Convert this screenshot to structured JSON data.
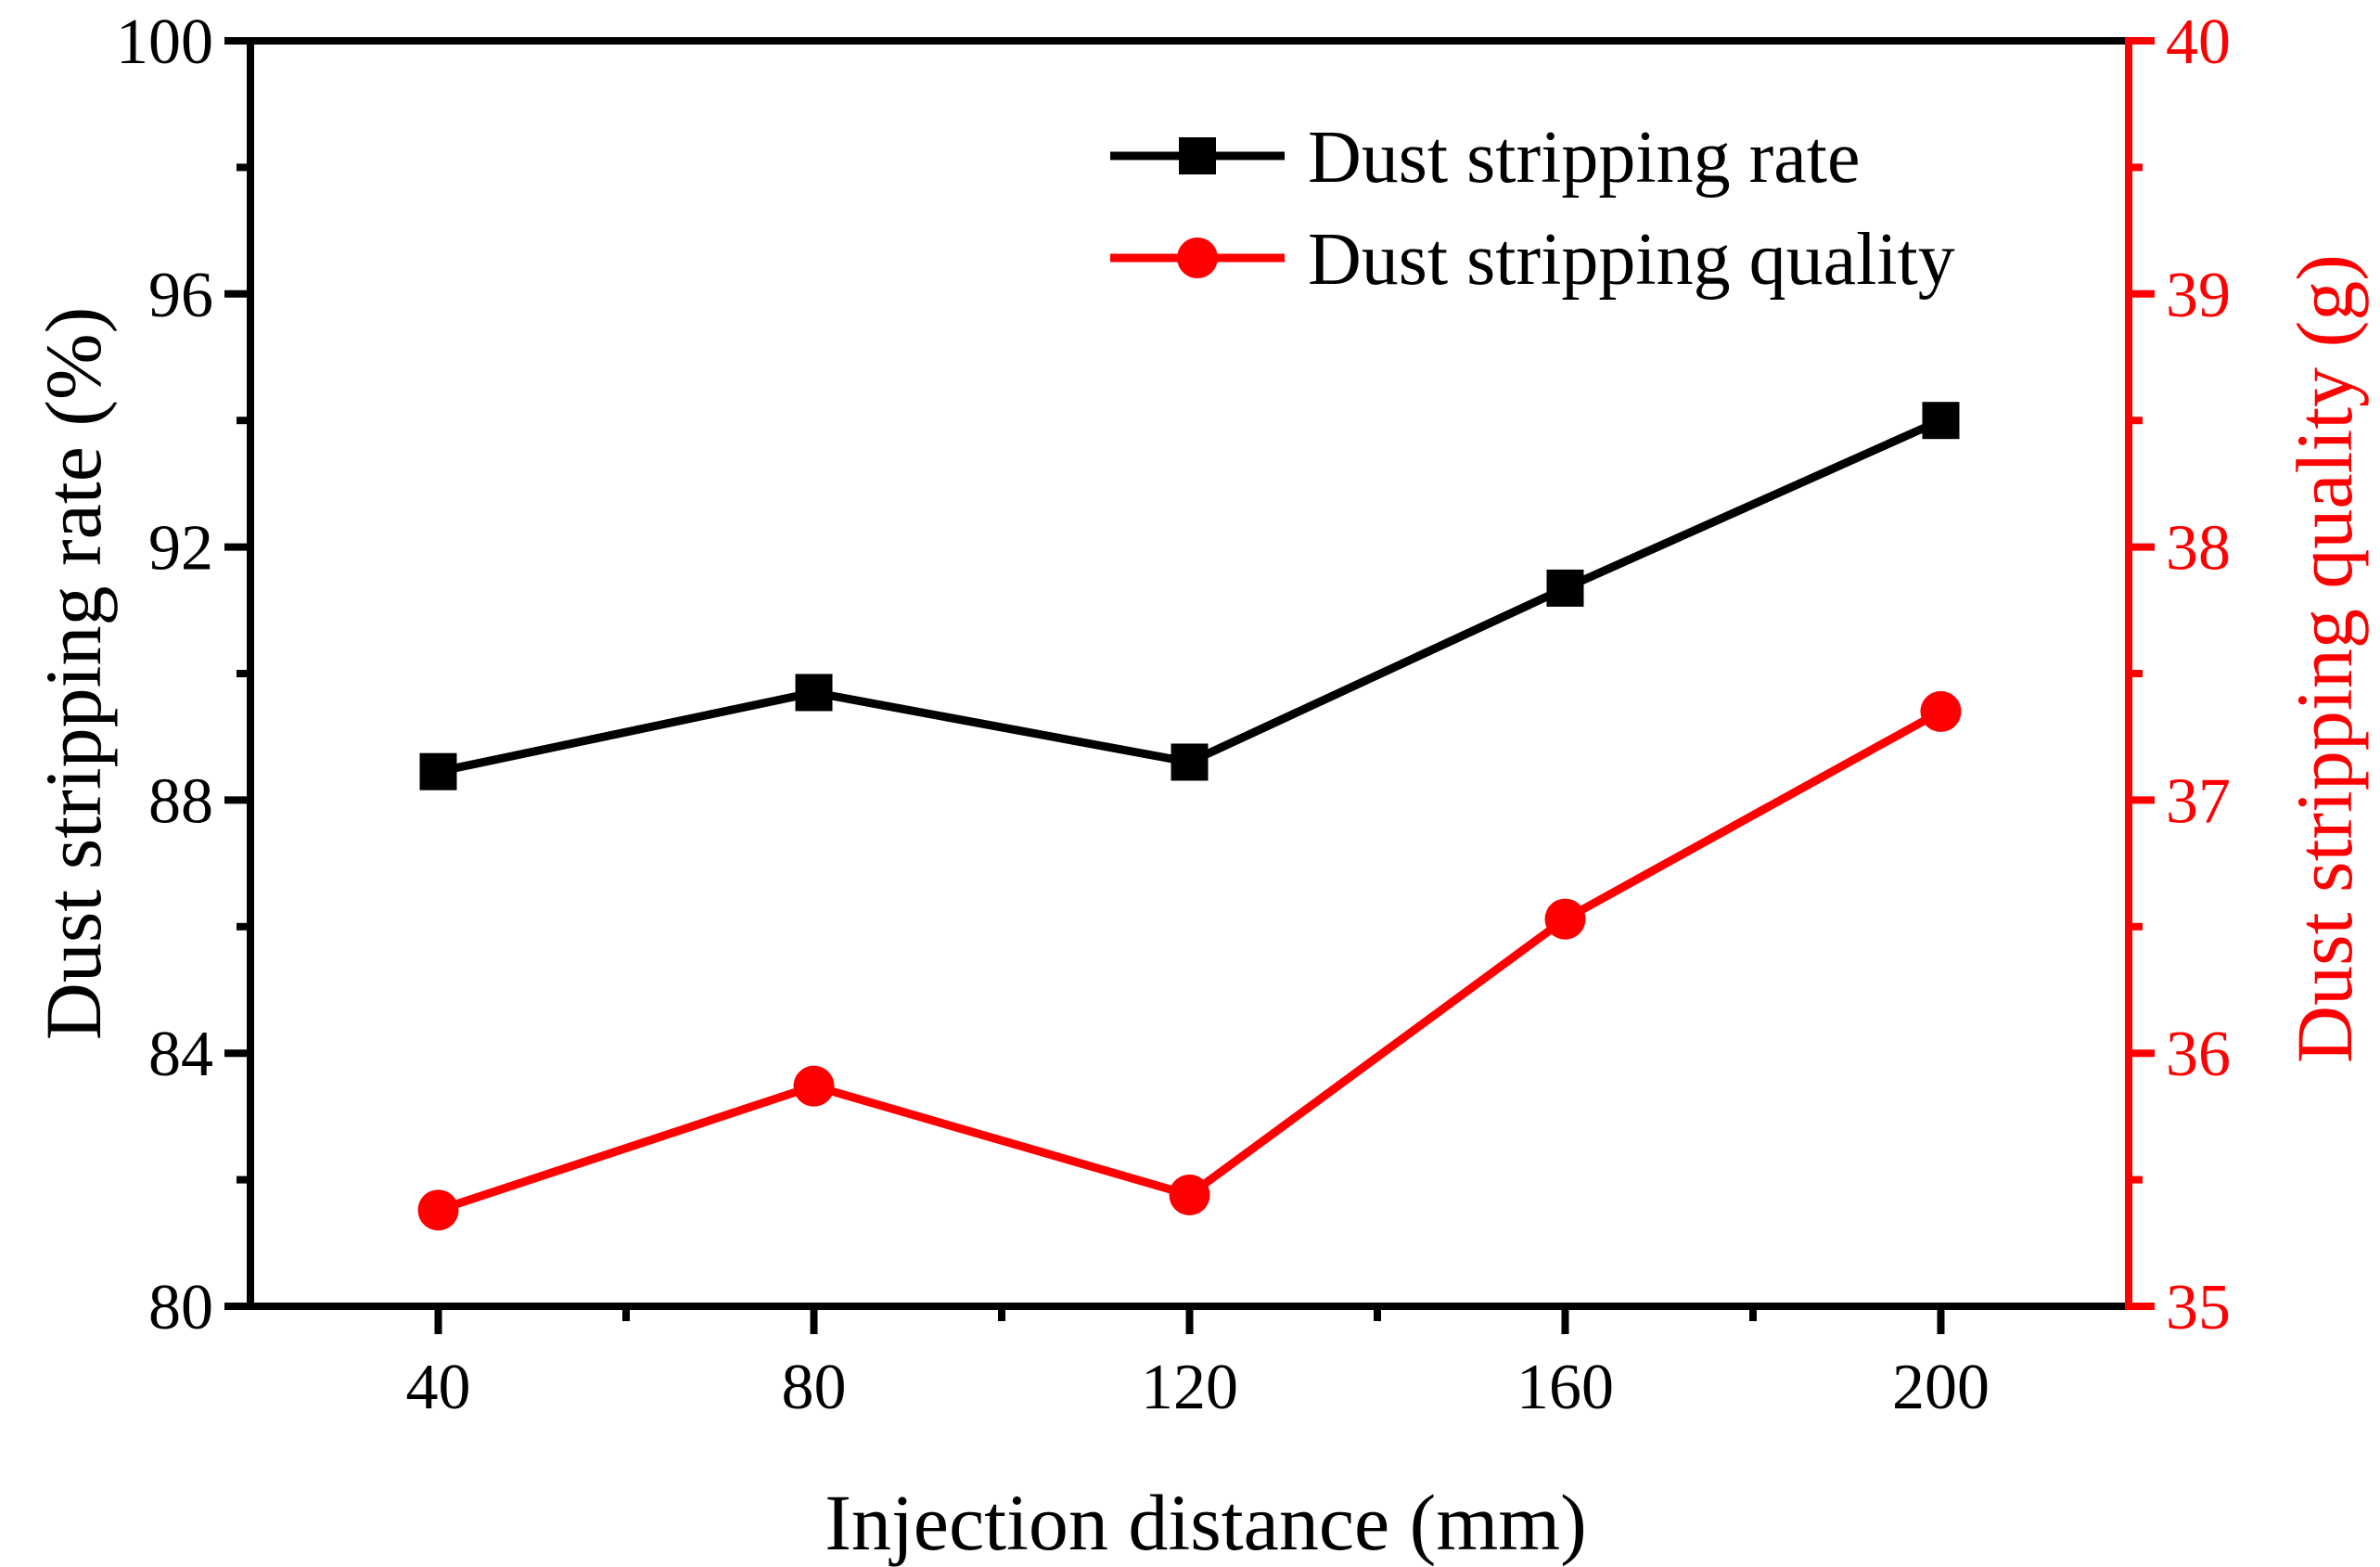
{
  "chart_data": {
    "type": "line",
    "title": "",
    "xlabel": "Injection distance (mm)",
    "ylabel_left": "Dust stripping rate (%)",
    "ylabel_right": "Dust stripping quality (g)",
    "x": [
      40,
      80,
      120,
      160,
      200
    ],
    "xlim": [
      20,
      220
    ],
    "xticks": [
      "40",
      "80",
      "120",
      "160",
      "200"
    ],
    "ylim_left": [
      80,
      100
    ],
    "yticks_left": [
      "80",
      "84",
      "88",
      "92",
      "96",
      "100"
    ],
    "ylim_right": [
      35,
      40
    ],
    "yticks_right": [
      "35",
      "36",
      "37",
      "38",
      "39",
      "40"
    ],
    "legend_position": "top-right",
    "series": [
      {
        "name": "Dust stripping rate",
        "axis": "left",
        "marker": "square",
        "color": "#000000",
        "values": [
          88.45,
          89.7,
          88.6,
          91.35,
          94.0
        ]
      },
      {
        "name": "Dust stripping quality",
        "axis": "right",
        "marker": "circle",
        "color": "#ff0000",
        "values": [
          35.38,
          35.87,
          35.44,
          36.53,
          37.35
        ]
      }
    ]
  }
}
